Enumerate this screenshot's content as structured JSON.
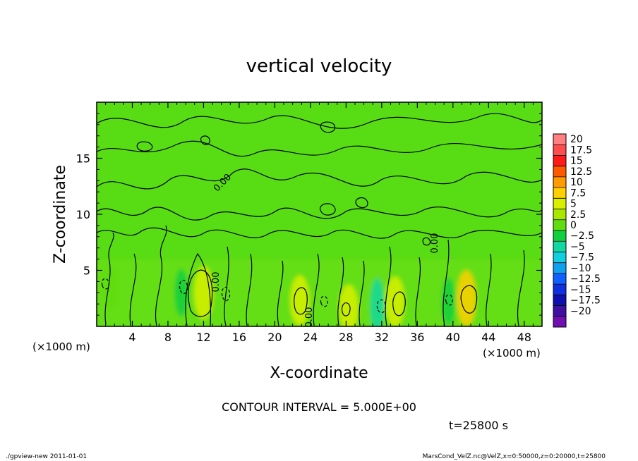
{
  "chart_data": {
    "type": "heatmap",
    "title": "vertical velocity",
    "xlabel": "X-coordinate",
    "ylabel": "Z-coordinate",
    "x_unit": "(×1000 m)",
    "z_unit": "(×1000 m)",
    "xlim": [
      0,
      50
    ],
    "ylim": [
      0,
      20
    ],
    "x_ticks": [
      "4",
      "8",
      "12",
      "16",
      "20",
      "24",
      "28",
      "32",
      "36",
      "40",
      "44",
      "48"
    ],
    "y_ticks": [
      "5",
      "10",
      "15"
    ],
    "contour_interval_text": "CONTOUR INTERVAL = 5.000E+00",
    "time_text": "t=25800 s",
    "colorbar": {
      "levels": [
        "20",
        "17.5",
        "15",
        "12.5",
        "10",
        "7.5",
        "5",
        "2.5",
        "0",
        "−2.5",
        "−5",
        "−7.5",
        "−10",
        "−12.5",
        "−15",
        "−17.5",
        "−20"
      ],
      "colors": [
        "#ff8080",
        "#ff4d4d",
        "#ff1a1a",
        "#ff5a00",
        "#ff9a00",
        "#ffd000",
        "#d8f000",
        "#a8e800",
        "#60dc10",
        "#10d040",
        "#10d8a0",
        "#10d0e0",
        "#10a0f0",
        "#1060ff",
        "#1030e0",
        "#1010b0",
        "#4010a0",
        "#7010b0"
      ]
    },
    "contour_labels": [
      "0.00",
      "0.00",
      "0.00",
      "0.00"
    ],
    "features": [
      {
        "x": 12,
        "z": 3.0,
        "value": 5
      },
      {
        "x": 22.8,
        "z": 2.3,
        "value": 4
      },
      {
        "x": 33.5,
        "z": 2.2,
        "value": 4
      },
      {
        "x": 41.5,
        "z": 2.5,
        "value": 6
      },
      {
        "x": 28.3,
        "z": 1.6,
        "value": 3
      },
      {
        "x": 31.5,
        "z": 1.8,
        "value": -6
      },
      {
        "x": 9.5,
        "z": 3.0,
        "value": -3
      },
      {
        "x": 39.5,
        "z": 2.2,
        "value": -3
      },
      {
        "x": 1.5,
        "z": 3.5,
        "value": -2
      }
    ]
  },
  "footer": {
    "left": "./gpview-new   2011-01-01",
    "right": "MarsCond_VelZ.nc@VelZ,x=0:50000,z=0:20000,t=25800"
  }
}
